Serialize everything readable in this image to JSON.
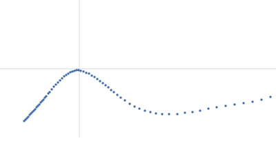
{
  "chart_data": {
    "type": "scatter",
    "x": [
      -80,
      -78,
      -76,
      -74,
      -72,
      -70,
      -68,
      -66,
      -64,
      -62,
      -60,
      -58,
      -56,
      -54,
      -52,
      -50,
      -48,
      -45,
      -43,
      -40,
      -37,
      -34,
      -31,
      -28,
      -25,
      -22,
      -19,
      -16,
      -13,
      -10,
      -7,
      -4,
      -1,
      2,
      6,
      10,
      14,
      18,
      22,
      26,
      30,
      34,
      38,
      42,
      46,
      50,
      55,
      60,
      66,
      73,
      80,
      87,
      95,
      103,
      111,
      120,
      130,
      142,
      153,
      164,
      175,
      187,
      199,
      212,
      225,
      238,
      251,
      264,
      277
    ],
    "values": [
      -76,
      -74,
      -72,
      -70,
      -67,
      -65,
      -63,
      -61,
      -59,
      -56,
      -54,
      -52,
      -49,
      -47,
      -45,
      -42,
      -40,
      -36,
      -34,
      -30,
      -26,
      -23,
      -20,
      -17,
      -14,
      -11,
      -9,
      -7,
      -5,
      -4,
      -3,
      -2,
      -2,
      -3,
      -4,
      -6,
      -7,
      -10,
      -12,
      -15,
      -18,
      -21,
      -24,
      -27,
      -31,
      -34,
      -38,
      -42,
      -46,
      -51,
      -55,
      -58,
      -61,
      -63,
      -65,
      -66,
      -66,
      -66,
      -64,
      -63,
      -61,
      -58,
      -56,
      -54,
      -52,
      -50,
      -48,
      -45,
      -41
    ],
    "color": "#3d6bb3",
    "xlim": [
      -115,
      285
    ],
    "ylim": [
      -100,
      100
    ]
  }
}
